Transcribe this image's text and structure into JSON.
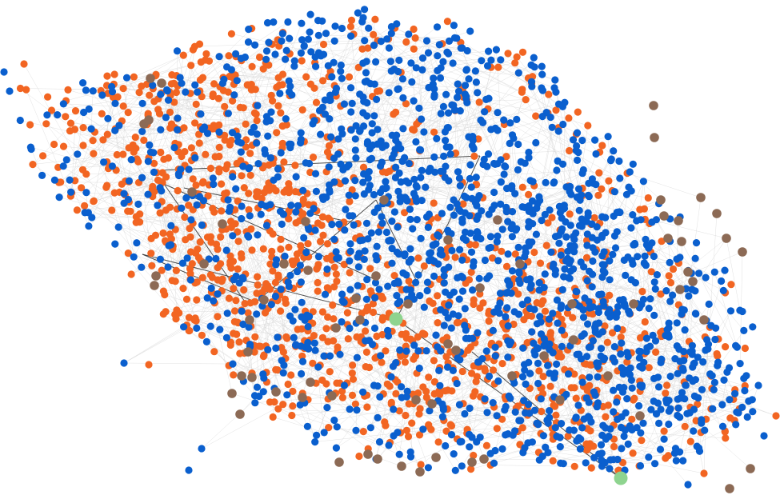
{
  "graph": {
    "background": "#ffffff",
    "edge_color": "#d9d9d9",
    "highlight_edge_color": "#333333",
    "classes": [
      {
        "id": "blue",
        "color": "#0a5fce"
      },
      {
        "id": "orange",
        "color": "#f26522"
      },
      {
        "id": "brown",
        "color": "#8c6a55"
      },
      {
        "id": "green",
        "color": "#8ed48f"
      }
    ],
    "node_counts": {
      "blue": 1550,
      "orange": 1250,
      "brown": 70,
      "green": 2
    }
  }
}
